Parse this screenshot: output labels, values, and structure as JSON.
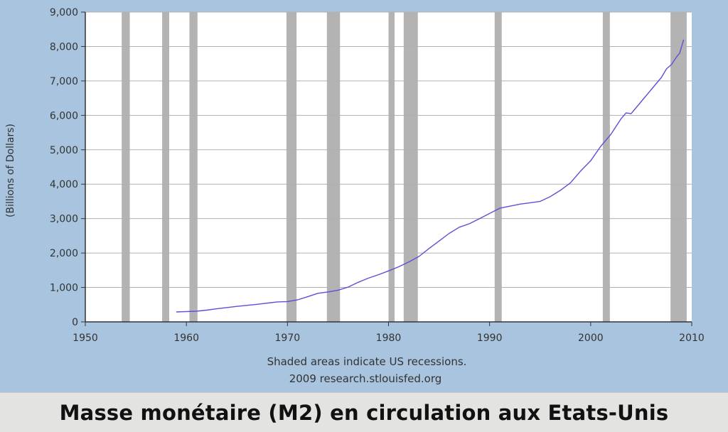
{
  "chart_data": {
    "type": "line",
    "ylabel": "(Billions of Dollars)",
    "xlabel": "",
    "xlim": [
      1950,
      2010
    ],
    "ylim": [
      0,
      9000
    ],
    "x_ticks": [
      1950,
      1960,
      1970,
      1980,
      1990,
      2000,
      2010
    ],
    "y_ticks": [
      0,
      1000,
      2000,
      3000,
      4000,
      5000,
      6000,
      7000,
      8000,
      9000
    ],
    "x_tick_labels": [
      "1950",
      "1960",
      "1970",
      "1980",
      "1990",
      "2000",
      "2010"
    ],
    "y_tick_labels": [
      "0",
      "1,000",
      "2,000",
      "3,000",
      "4,000",
      "5,000",
      "6,000",
      "7,000",
      "8,000",
      "9,000"
    ],
    "grid": true,
    "recessions": [
      [
        1953.6,
        1954.4
      ],
      [
        1957.6,
        1958.3
      ],
      [
        1960.3,
        1961.1
      ],
      [
        1969.9,
        1970.9
      ],
      [
        1973.9,
        1975.2
      ],
      [
        1980.0,
        1980.6
      ],
      [
        1981.5,
        1982.9
      ],
      [
        1990.5,
        1991.2
      ],
      [
        2001.2,
        2001.9
      ],
      [
        2007.9,
        2009.5
      ]
    ],
    "series": [
      {
        "color": "#5f4fd8",
        "x": [
          1959.0,
          1961.0,
          1962.0,
          1963.0,
          1965.0,
          1967.0,
          1969.0,
          1970.0,
          1971.0,
          1972.0,
          1973.0,
          1974.0,
          1975.0,
          1976.0,
          1977.0,
          1978.0,
          1979.0,
          1980.0,
          1981.0,
          1982.0,
          1983.0,
          1984.0,
          1985.0,
          1986.0,
          1987.0,
          1988.0,
          1989.0,
          1990.0,
          1991.0,
          1992.0,
          1993.0,
          1994.0,
          1995.0,
          1996.0,
          1997.0,
          1998.0,
          1999.0,
          2000.0,
          2001.0,
          2002.0,
          2003.0,
          2003.5,
          2004.0,
          2005.0,
          2006.0,
          2007.0,
          2007.5,
          2008.0,
          2008.5,
          2008.8,
          2009.0,
          2009.2
        ],
        "y": [
          290,
          310,
          340,
          380,
          450,
          510,
          580,
          590,
          640,
          730,
          830,
          870,
          920,
          1010,
          1150,
          1270,
          1370,
          1480,
          1600,
          1740,
          1900,
          2130,
          2350,
          2570,
          2750,
          2850,
          3000,
          3150,
          3300,
          3360,
          3420,
          3460,
          3500,
          3640,
          3820,
          4040,
          4380,
          4680,
          5100,
          5450,
          5900,
          6070,
          6050,
          6400,
          6750,
          7100,
          7350,
          7480,
          7700,
          7800,
          8000,
          8200
        ]
      }
    ],
    "annotations": [
      "Shaded areas indicate US recessions.",
      "2009 research.stlouisfed.org"
    ]
  },
  "caption": "Masse monétaire (M2) en circulation aux Etats-Unis",
  "colors": {
    "background": "#a9c4df",
    "plot_background": "#ffffff",
    "recession_band": "#b3b3b3",
    "grid": "#b0b0b0",
    "line": "#5f4fd8",
    "caption_background": "#e3e3e1"
  }
}
